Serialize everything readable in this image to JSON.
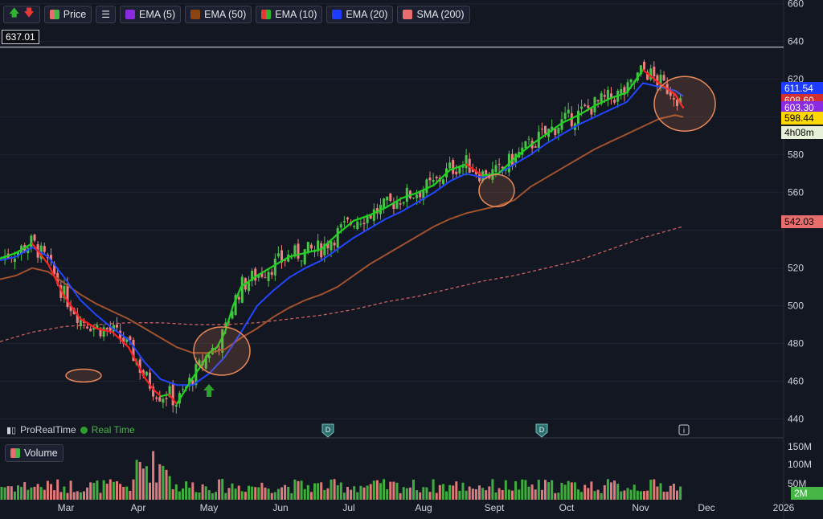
{
  "toolbar": {
    "buttons": [
      {
        "label": "Price",
        "color": "#ef6b6b"
      },
      {
        "label": "EMA (5)",
        "color": "#8a2be2"
      },
      {
        "label": "EMA (50)",
        "color": "#8b4513"
      },
      {
        "label": "EMA (10)",
        "color": "#e53935"
      },
      {
        "label": "EMA (20)",
        "color": "#1e3cff"
      },
      {
        "label": "SMA (200)",
        "color": "#e86d6d"
      }
    ]
  },
  "volume_button": {
    "label": "Volume"
  },
  "price_tag": "637.01",
  "watermark": {
    "brand": "ProRealTime",
    "mode": "Real Time"
  },
  "right_labels": [
    {
      "text": "611.54",
      "bg": "#1e3cff",
      "fg": "#ffffff"
    },
    {
      "text": "608.60",
      "bg": "#d32f2f",
      "fg": "#ffffff"
    },
    {
      "text": "603.30",
      "bg": "#8a2be2",
      "fg": "#ffffff"
    },
    {
      "text": "598.44",
      "bg": "#ffd700",
      "fg": "#000000"
    },
    {
      "text": "4h08m",
      "bg": "#e6f0d8",
      "fg": "#000000"
    },
    {
      "text": "542.03",
      "bg": "#e86d6d",
      "fg": "#000000"
    }
  ],
  "volume_label": "2M",
  "chart_data": {
    "type": "line",
    "y_ticks": [
      660,
      640,
      620,
      600,
      580,
      560,
      540,
      520,
      500,
      480,
      460,
      440
    ],
    "y_tick_labels": [
      "660",
      "640",
      "620",
      "600",
      "580",
      "560",
      "",
      "520",
      "500",
      "480",
      "460",
      "440"
    ],
    "ylim": [
      430,
      662
    ],
    "x_labels": [
      "Mar",
      "Apr",
      "May",
      "Jun",
      "Jul",
      "Aug",
      "Sept",
      "Oct",
      "Nov",
      "Dec",
      "2026"
    ],
    "volume_ticks": [
      "150M",
      "100M",
      "50M"
    ],
    "horizontal_line": 637.01,
    "ema10_points": [
      [
        0,
        525
      ],
      [
        20,
        528
      ],
      [
        40,
        533
      ],
      [
        60,
        522
      ],
      [
        80,
        505
      ],
      [
        100,
        493
      ],
      [
        120,
        488
      ],
      [
        140,
        486
      ],
      [
        160,
        478
      ],
      [
        170,
        470
      ],
      [
        180,
        462
      ],
      [
        190,
        456
      ],
      [
        200,
        452
      ],
      [
        210,
        453
      ],
      [
        220,
        448
      ],
      [
        230,
        455
      ],
      [
        240,
        462
      ],
      [
        250,
        468
      ],
      [
        260,
        475
      ],
      [
        270,
        478
      ],
      [
        280,
        486
      ],
      [
        290,
        500
      ],
      [
        300,
        510
      ],
      [
        320,
        516
      ],
      [
        340,
        521
      ],
      [
        360,
        526
      ],
      [
        380,
        528
      ],
      [
        400,
        530
      ],
      [
        420,
        538
      ],
      [
        440,
        545
      ],
      [
        460,
        548
      ],
      [
        480,
        552
      ],
      [
        500,
        557
      ],
      [
        520,
        560
      ],
      [
        540,
        564
      ],
      [
        560,
        572
      ],
      [
        580,
        575
      ],
      [
        600,
        569
      ],
      [
        620,
        570
      ],
      [
        640,
        578
      ],
      [
        660,
        585
      ],
      [
        680,
        591
      ],
      [
        700,
        597
      ],
      [
        720,
        601
      ],
      [
        740,
        606
      ],
      [
        760,
        610
      ],
      [
        780,
        613
      ],
      [
        800,
        625
      ],
      [
        820,
        618
      ],
      [
        840,
        612
      ],
      [
        850,
        605
      ]
    ],
    "ema20_points": [
      [
        0,
        524
      ],
      [
        20,
        526
      ],
      [
        40,
        531
      ],
      [
        60,
        526
      ],
      [
        80,
        515
      ],
      [
        100,
        503
      ],
      [
        120,
        495
      ],
      [
        140,
        488
      ],
      [
        160,
        482
      ],
      [
        180,
        470
      ],
      [
        200,
        461
      ],
      [
        220,
        458
      ],
      [
        240,
        458
      ],
      [
        260,
        464
      ],
      [
        280,
        473
      ],
      [
        300,
        486
      ],
      [
        320,
        500
      ],
      [
        340,
        508
      ],
      [
        360,
        515
      ],
      [
        380,
        520
      ],
      [
        400,
        524
      ],
      [
        420,
        530
      ],
      [
        440,
        536
      ],
      [
        460,
        541
      ],
      [
        480,
        546
      ],
      [
        500,
        550
      ],
      [
        520,
        555
      ],
      [
        540,
        560
      ],
      [
        560,
        566
      ],
      [
        580,
        570
      ],
      [
        600,
        568
      ],
      [
        620,
        570
      ],
      [
        640,
        575
      ],
      [
        660,
        580
      ],
      [
        680,
        586
      ],
      [
        700,
        591
      ],
      [
        720,
        596
      ],
      [
        740,
        600
      ],
      [
        760,
        604
      ],
      [
        780,
        608
      ],
      [
        800,
        618
      ],
      [
        820,
        616
      ],
      [
        840,
        614
      ],
      [
        850,
        611
      ]
    ],
    "ema50_points": [
      [
        0,
        514
      ],
      [
        20,
        516
      ],
      [
        40,
        520
      ],
      [
        60,
        518
      ],
      [
        80,
        512
      ],
      [
        100,
        506
      ],
      [
        120,
        501
      ],
      [
        140,
        497
      ],
      [
        160,
        493
      ],
      [
        180,
        488
      ],
      [
        200,
        483
      ],
      [
        220,
        478
      ],
      [
        240,
        475
      ],
      [
        260,
        475
      ],
      [
        280,
        477
      ],
      [
        300,
        483
      ],
      [
        320,
        488
      ],
      [
        340,
        494
      ],
      [
        360,
        499
      ],
      [
        380,
        503
      ],
      [
        400,
        506
      ],
      [
        420,
        510
      ],
      [
        440,
        516
      ],
      [
        460,
        522
      ],
      [
        480,
        527
      ],
      [
        500,
        532
      ],
      [
        520,
        537
      ],
      [
        540,
        542
      ],
      [
        560,
        546
      ],
      [
        580,
        549
      ],
      [
        600,
        551
      ],
      [
        620,
        553
      ],
      [
        640,
        556
      ],
      [
        660,
        563
      ],
      [
        680,
        568
      ],
      [
        700,
        573
      ],
      [
        720,
        578
      ],
      [
        740,
        583
      ],
      [
        760,
        587
      ],
      [
        780,
        591
      ],
      [
        800,
        595
      ],
      [
        820,
        599
      ],
      [
        840,
        601
      ],
      [
        850,
        600
      ]
    ],
    "sma200_points": [
      [
        0,
        481
      ],
      [
        40,
        486
      ],
      [
        80,
        489
      ],
      [
        120,
        490
      ],
      [
        160,
        491
      ],
      [
        200,
        491
      ],
      [
        240,
        490
      ],
      [
        280,
        490
      ],
      [
        320,
        491
      ],
      [
        360,
        493
      ],
      [
        400,
        495
      ],
      [
        440,
        498
      ],
      [
        480,
        502
      ],
      [
        520,
        505
      ],
      [
        560,
        509
      ],
      [
        600,
        513
      ],
      [
        640,
        516
      ],
      [
        680,
        520
      ],
      [
        720,
        524
      ],
      [
        760,
        530
      ],
      [
        800,
        536
      ],
      [
        850,
        542
      ]
    ],
    "circles": [
      {
        "x": 104,
        "y": 463,
        "rx": 22,
        "ry": 8
      },
      {
        "x": 276,
        "y": 476,
        "rx": 35,
        "ry": 30
      },
      {
        "x": 618,
        "y": 561,
        "rx": 22,
        "ry": 20
      },
      {
        "x": 852,
        "y": 607,
        "rx": 38,
        "ry": 34
      }
    ]
  }
}
